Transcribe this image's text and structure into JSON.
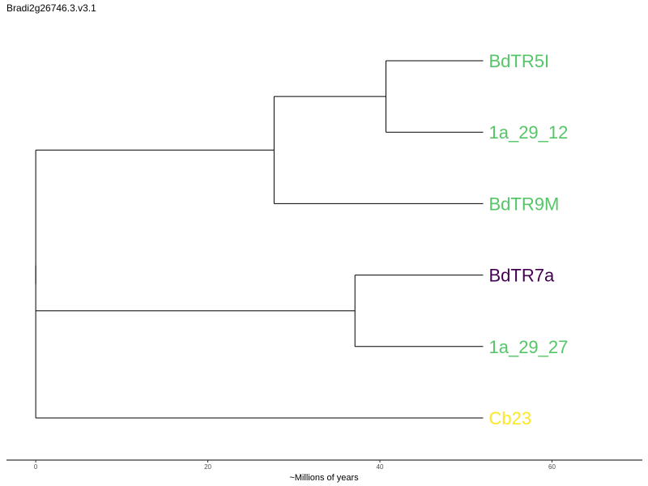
{
  "title": "Bradi2g26746.3.v3.1",
  "chart_data": {
    "type": "phylogenetic-tree",
    "xlabel": "~Millions of years",
    "xlim": [
      -3.4,
      70.5
    ],
    "xticks": [
      0,
      20,
      40,
      60
    ],
    "tips": [
      {
        "name": "BdTR5I",
        "x": 52.0,
        "color": "#55c667"
      },
      {
        "name": "1a_29_12",
        "x": 52.0,
        "color": "#55c667"
      },
      {
        "name": "BdTR9M",
        "x": 52.0,
        "color": "#55c667"
      },
      {
        "name": "BdTR7a",
        "x": 52.0,
        "color": "#440154"
      },
      {
        "name": "1a_29_27",
        "x": 52.0,
        "color": "#55c667"
      },
      {
        "name": "Cb23",
        "x": 52.0,
        "color": "#fde725"
      }
    ],
    "nodes": [
      {
        "id": "n_5I_12",
        "x": 40.7,
        "children": [
          "BdTR5I",
          "1a_29_12"
        ]
      },
      {
        "id": "n_9M",
        "x": 27.7,
        "children": [
          "n_5I_12",
          "BdTR9M"
        ]
      },
      {
        "id": "n_7a_27",
        "x": 37.1,
        "children": [
          "BdTR7a",
          "1a_29_27"
        ]
      },
      {
        "id": "root",
        "x": 0,
        "children": [
          "n_9M",
          "n_7a_27",
          "Cb23"
        ]
      }
    ]
  }
}
